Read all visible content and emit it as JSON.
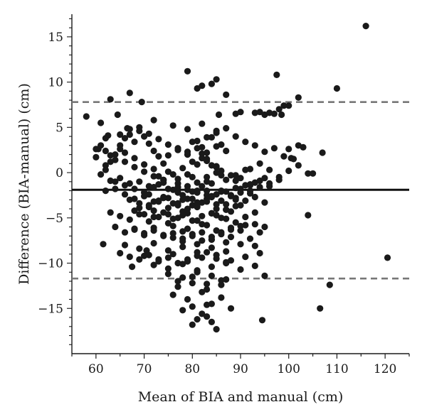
{
  "chart_data": {
    "type": "scatter",
    "xlabel": "Mean of BIA and manual (cm)",
    "ylabel": "Difference (BIA-manual) (cm)",
    "xlim": [
      55,
      125
    ],
    "ylim": [
      -20,
      17.5
    ],
    "xticks": [
      60,
      70,
      80,
      90,
      100,
      110,
      120
    ],
    "yticks": [
      -15,
      -10,
      -5,
      0,
      5,
      10,
      15
    ],
    "grid": false,
    "reference_lines": [
      {
        "y": -1.9,
        "style": "solid"
      },
      {
        "y": 7.8,
        "style": "dashed"
      },
      {
        "y": -11.7,
        "style": "dashed"
      }
    ],
    "point_color": "#1a1a1a",
    "mean_line_color": "#111111",
    "limit_line_color": "#777777",
    "series": [
      {
        "x": [
          58,
          61,
          60.5,
          62,
          63,
          64.5,
          66.5,
          67,
          69.5,
          72,
          76,
          79,
          81,
          82,
          84,
          85,
          85.5,
          87,
          89,
          90,
          93,
          94,
          95,
          96,
          97,
          97.5,
          98,
          98.5,
          99,
          100,
          100.5,
          102,
          110,
          116,
          60,
          61,
          62,
          63,
          62,
          64,
          65,
          66,
          67,
          68,
          69,
          70,
          71,
          72,
          73,
          74,
          72,
          70,
          68,
          66,
          65,
          64,
          63,
          62,
          61,
          60,
          65,
          67,
          69,
          71,
          73,
          75,
          77,
          79,
          81,
          83,
          85,
          87,
          89,
          91,
          93,
          95,
          97,
          99,
          66,
          68,
          70,
          72,
          74,
          76,
          78,
          80,
          82,
          84,
          86,
          88,
          90,
          92,
          94,
          96,
          64,
          66,
          68,
          70,
          72,
          74,
          76,
          78,
          80,
          82,
          84,
          86,
          88,
          90,
          92,
          94,
          96,
          98,
          100,
          102,
          104,
          67,
          69,
          71,
          73,
          75,
          77,
          79,
          81,
          83,
          85,
          87,
          89,
          91,
          93,
          95,
          63,
          65,
          67,
          69,
          71,
          73,
          75,
          77,
          79,
          81,
          83,
          85,
          87,
          89,
          91,
          93,
          95,
          68,
          70,
          72,
          74,
          76,
          78,
          80,
          82,
          84,
          86,
          88,
          90,
          92,
          94,
          66,
          69,
          72,
          75,
          78,
          81,
          84,
          87,
          90,
          93,
          70,
          73,
          76,
          79,
          82,
          85,
          88,
          91,
          94,
          72,
          75,
          78,
          81,
          84,
          87,
          90,
          93,
          75,
          78,
          81,
          84,
          87,
          77,
          80,
          83,
          86,
          74,
          77,
          80,
          83,
          86,
          89,
          92,
          95,
          71,
          74,
          77,
          80,
          83,
          86,
          89,
          92,
          69,
          72,
          75,
          78,
          81,
          84,
          87,
          90,
          93,
          76,
          79,
          82,
          85,
          88,
          91,
          78,
          81,
          84,
          87,
          80,
          82,
          84,
          86,
          79,
          82,
          85,
          81,
          83,
          85,
          76,
          79,
          82,
          84,
          86,
          78,
          80,
          82,
          83,
          80,
          81,
          83,
          84,
          82,
          83,
          85,
          77,
          80,
          83,
          86,
          79,
          81,
          84,
          73,
          75,
          77,
          79,
          81,
          83,
          85,
          87,
          89,
          91,
          71,
          73,
          75,
          77,
          79,
          81,
          83,
          85,
          87,
          89,
          75,
          77,
          79,
          81,
          83,
          85,
          87,
          100,
          101,
          102,
          103,
          104,
          105,
          107,
          108.5,
          106.5,
          120.5,
          62,
          64,
          66,
          68,
          70,
          72,
          74,
          76,
          78,
          80,
          82,
          84,
          86,
          88,
          90,
          92,
          94,
          96,
          98,
          63,
          65,
          67,
          69,
          71,
          73,
          75,
          77,
          79,
          81,
          83,
          85,
          87,
          89,
          91,
          93,
          64,
          66,
          68,
          70,
          72,
          74,
          76,
          78,
          80,
          82,
          84,
          86,
          88,
          90,
          65,
          67,
          69,
          71,
          73,
          75,
          77,
          79,
          81,
          83,
          85,
          87,
          68,
          70,
          72,
          74,
          76,
          78,
          80,
          82,
          84,
          86,
          88,
          61.5,
          62.5,
          67.5,
          70.5,
          94.5,
          95,
          85,
          88
        ],
        "y": [
          6.2,
          5.5,
          2.6,
          3.8,
          8.1,
          6.4,
          4.9,
          8.8,
          7.8,
          5.8,
          5.2,
          11.2,
          9.3,
          9.6,
          9.8,
          10.3,
          6.4,
          8.6,
          6.5,
          6.7,
          6.6,
          6.7,
          6.4,
          6.6,
          6.5,
          10.8,
          7.0,
          6.4,
          7.4,
          7.4,
          1.6,
          8.3,
          9.3,
          16.2,
          2.6,
          3.0,
          2.4,
          1.9,
          0.8,
          1.4,
          2.6,
          3.8,
          4.2,
          3.4,
          4.6,
          4.0,
          3.2,
          2.4,
          1.8,
          1.0,
          0.4,
          0.9,
          1.6,
          2.2,
          3.0,
          2.0,
          1.2,
          0.3,
          -0.2,
          1.7,
          4.2,
          4.8,
          5.0,
          4.3,
          3.7,
          3.1,
          2.7,
          2.3,
          3.5,
          3.9,
          4.6,
          4.9,
          4.0,
          3.4,
          3.0,
          2.3,
          2.7,
          1.8,
          1.2,
          0.6,
          0.1,
          -0.4,
          -0.8,
          -0.2,
          0.5,
          1.2,
          1.6,
          0.8,
          0.2,
          -0.3,
          -0.6,
          0.4,
          1.0,
          0.3,
          -1.0,
          -1.4,
          -1.8,
          -2.2,
          -1.6,
          -1.1,
          -1.9,
          -2.5,
          -2.1,
          -1.5,
          -1.2,
          -2.0,
          -2.6,
          -1.8,
          -1.3,
          -0.9,
          -1.5,
          -0.5,
          0.2,
          0.8,
          -0.1,
          -3.0,
          -3.4,
          -3.8,
          -3.2,
          -2.8,
          -3.6,
          -4.0,
          -3.3,
          -2.9,
          -3.5,
          -4.1,
          -3.7,
          -3.1,
          -2.7,
          -3.3,
          -4.4,
          -4.8,
          -5.2,
          -4.6,
          -5.4,
          -4.9,
          -5.6,
          -5.0,
          -4.5,
          -5.3,
          -5.8,
          -4.7,
          -5.1,
          -5.5,
          -4.9,
          -5.7,
          -6.0,
          -6.3,
          -6.7,
          -6.1,
          -6.9,
          -7.2,
          -6.5,
          -7.0,
          -6.6,
          -7.4,
          -6.8,
          -7.1,
          -6.4,
          -7.3,
          -6.6,
          -8.0,
          -8.4,
          -7.8,
          -8.6,
          -8.2,
          -8.8,
          -8.3,
          -8.7,
          -7.9,
          -8.1,
          -9.2,
          -9.6,
          -9.0,
          -9.8,
          -9.4,
          -9.1,
          -9.7,
          -9.3,
          -8.9,
          -10.2,
          -10.6,
          -10.1,
          -10.8,
          -10.4,
          -10.0,
          -10.7,
          -10.3,
          -11.2,
          -11.6,
          -11.0,
          -11.4,
          -11.8,
          -12.6,
          -12.2,
          -12.9,
          -12.4,
          -0.8,
          -1.2,
          -0.5,
          -1.0,
          -0.3,
          -0.9,
          -1.4,
          -0.6,
          -2.4,
          -2.7,
          -2.2,
          -2.9,
          -2.5,
          -2.1,
          -2.8,
          -2.3,
          -3.9,
          -4.2,
          -4.6,
          -4.3,
          -3.8,
          -4.5,
          -4.1,
          -3.6,
          -4.4,
          -5.9,
          -6.2,
          -5.7,
          -6.4,
          -6.1,
          -5.8,
          -7.6,
          -7.9,
          -7.4,
          -7.7,
          3.4,
          2.8,
          3.9,
          3.1,
          4.8,
          5.4,
          4.4,
          0.9,
          1.5,
          0.6,
          -13.5,
          -14.0,
          -13.2,
          -14.5,
          -13.8,
          -15.2,
          -14.8,
          -15.6,
          -14.6,
          -16.8,
          -16.2,
          -15.9,
          -16.5,
          2.1,
          1.3,
          0.7,
          -12.0,
          -11.5,
          -12.3,
          -11.9,
          -1.5,
          -2.0,
          -2.6,
          -0.4,
          0.1,
          -0.7,
          -0.2,
          -1.1,
          -0.5,
          0.0,
          -0.8,
          -0.3,
          0.3,
          -3.6,
          -3.1,
          -3.9,
          -3.4,
          -2.9,
          -3.7,
          -3.2,
          -4.0,
          -3.5,
          -3.0,
          1.9,
          2.5,
          2.0,
          2.7,
          2.2,
          2.9,
          2.4,
          2.6,
          1.5,
          3.0,
          2.8,
          -4.7,
          -0.1,
          2.2,
          -12.4,
          -15.0,
          -9.4,
          -2.0,
          -1.8,
          -2.4,
          -2.9,
          -2.6,
          -3.2,
          -2.8,
          -3.4,
          -3.0,
          -3.6,
          -3.3,
          -2.7,
          -3.1,
          -2.5,
          -2.2,
          -2.0,
          -1.6,
          -1.2,
          -0.8,
          -0.9,
          -0.6,
          -1.2,
          -1.0,
          -1.5,
          -1.3,
          -1.8,
          -1.6,
          -1.9,
          -2.2,
          -2.0,
          -2.4,
          -2.1,
          -1.7,
          -1.4,
          -1.1,
          -6.0,
          -6.6,
          -6.2,
          -6.9,
          -6.4,
          -7.0,
          -6.7,
          -7.3,
          -6.8,
          -7.5,
          -7.1,
          -6.6,
          -6.3,
          -5.9,
          -8.9,
          -9.3,
          -9.6,
          -9.1,
          -9.8,
          -9.4,
          -10.0,
          -9.6,
          -9.2,
          -8.8,
          -9.5,
          -9.9,
          -4.2,
          -4.6,
          -4.9,
          -4.4,
          -5.1,
          -4.7,
          -5.3,
          -4.8,
          -4.5,
          -5.0,
          -4.3,
          -7.9,
          4.1,
          -10.4,
          -8.6,
          -16.3,
          -11.4,
          -17.3,
          -15.0
        ]
      }
    ]
  }
}
